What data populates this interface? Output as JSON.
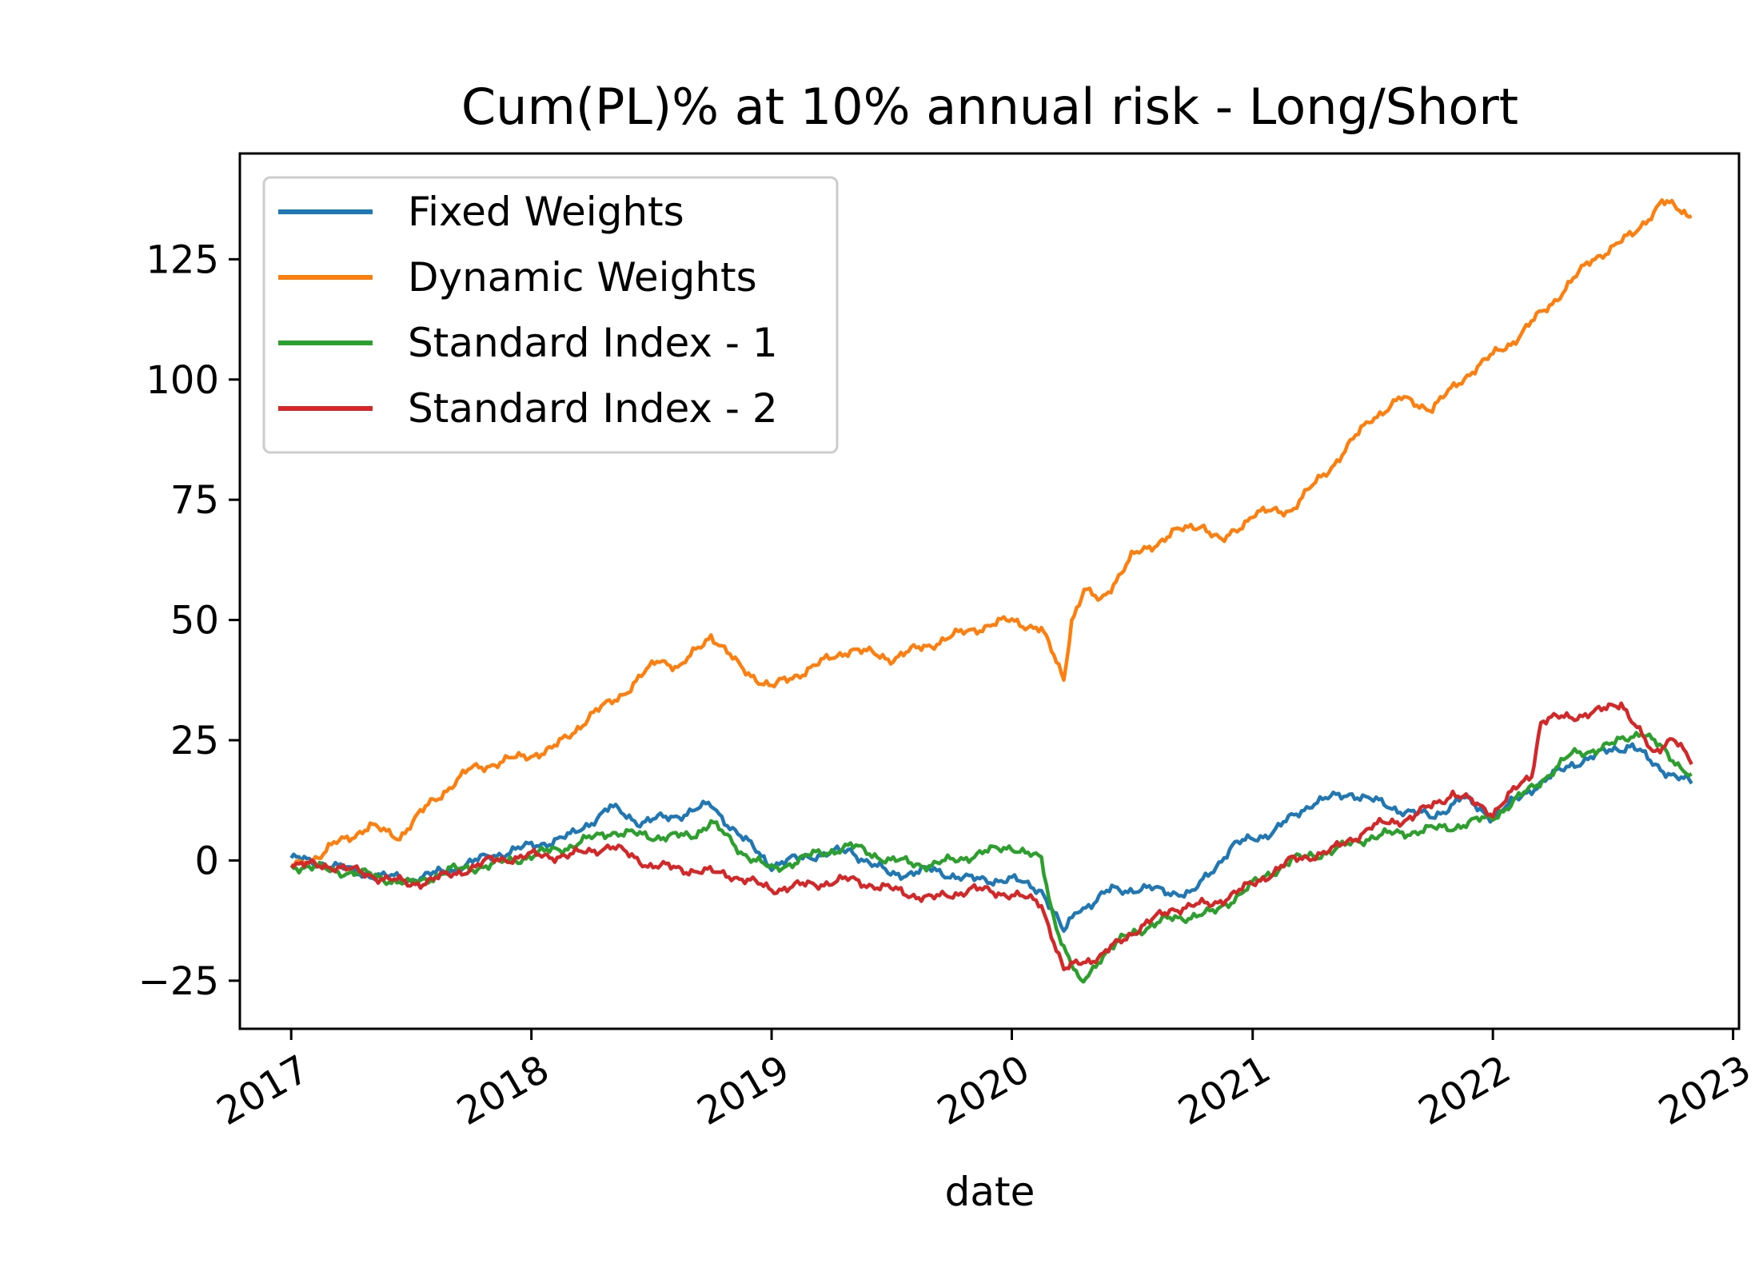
{
  "chart_data": {
    "type": "line",
    "title": "Cum(PL)% at 10% annual risk - Long/Short",
    "xlabel": "date",
    "ylabel": "",
    "x_ticks": [
      "2017",
      "2018",
      "2019",
      "2020",
      "2021",
      "2022",
      "2023"
    ],
    "y_ticks": [
      -25,
      0,
      25,
      50,
      75,
      100,
      125
    ],
    "xlim": [
      "2016-10-15",
      "2023-01-10"
    ],
    "ylim": [
      -35,
      147
    ],
    "grid": false,
    "legend_position": "top-left",
    "series": [
      {
        "name": "Fixed Weights",
        "color": "#1f77b4",
        "points": [
          [
            "2017-01-01",
            0.5
          ],
          [
            "2017-03-01",
            -1
          ],
          [
            "2017-05-01",
            -3
          ],
          [
            "2017-07-01",
            -4
          ],
          [
            "2017-09-01",
            -2
          ],
          [
            "2017-11-01",
            1
          ],
          [
            "2018-01-01",
            3
          ],
          [
            "2018-03-01",
            5
          ],
          [
            "2018-05-01",
            11
          ],
          [
            "2018-06-15",
            8
          ],
          [
            "2018-08-01",
            9
          ],
          [
            "2018-10-01",
            11.5
          ],
          [
            "2018-11-15",
            5
          ],
          [
            "2019-01-01",
            -1
          ],
          [
            "2019-03-01",
            1
          ],
          [
            "2019-05-01",
            2
          ],
          [
            "2019-07-01",
            -3
          ],
          [
            "2019-09-01",
            -2
          ],
          [
            "2019-11-01",
            -4
          ],
          [
            "2020-01-01",
            -4
          ],
          [
            "2020-02-15",
            -6
          ],
          [
            "2020-03-01",
            -10
          ],
          [
            "2020-03-20",
            -15
          ],
          [
            "2020-04-10",
            -10
          ],
          [
            "2020-05-01",
            -9
          ],
          [
            "2020-06-01",
            -6
          ],
          [
            "2020-08-01",
            -6
          ],
          [
            "2020-10-01",
            -7
          ],
          [
            "2020-12-01",
            3
          ],
          [
            "2021-02-01",
            6
          ],
          [
            "2021-04-01",
            12
          ],
          [
            "2021-06-01",
            14
          ],
          [
            "2021-08-01",
            11
          ],
          [
            "2021-10-01",
            9
          ],
          [
            "2021-11-15",
            13
          ],
          [
            "2022-01-01",
            9
          ],
          [
            "2022-03-01",
            15
          ],
          [
            "2022-05-01",
            20
          ],
          [
            "2022-07-01",
            23
          ],
          [
            "2022-08-01",
            24
          ],
          [
            "2022-09-01",
            20
          ],
          [
            "2022-10-30",
            16
          ]
        ]
      },
      {
        "name": "Dynamic Weights",
        "color": "#ff7f0e",
        "points": [
          [
            "2017-01-01",
            -1
          ],
          [
            "2017-02-15",
            1
          ],
          [
            "2017-03-15",
            4
          ],
          [
            "2017-05-01",
            7
          ],
          [
            "2017-06-15",
            5
          ],
          [
            "2017-08-01",
            12
          ],
          [
            "2017-10-01",
            19
          ],
          [
            "2017-12-01",
            21
          ],
          [
            "2018-02-01",
            23
          ],
          [
            "2018-04-01",
            30
          ],
          [
            "2018-06-01",
            36
          ],
          [
            "2018-07-15",
            42
          ],
          [
            "2018-08-15",
            40
          ],
          [
            "2018-10-01",
            47
          ],
          [
            "2018-11-15",
            40
          ],
          [
            "2019-01-01",
            36
          ],
          [
            "2019-03-01",
            40
          ],
          [
            "2019-05-01",
            44
          ],
          [
            "2019-07-01",
            42
          ],
          [
            "2019-09-01",
            45
          ],
          [
            "2019-11-01",
            48
          ],
          [
            "2020-01-01",
            50
          ],
          [
            "2020-02-15",
            48
          ],
          [
            "2020-03-20",
            38
          ],
          [
            "2020-04-01",
            50
          ],
          [
            "2020-04-20",
            56
          ],
          [
            "2020-05-15",
            54
          ],
          [
            "2020-07-01",
            63
          ],
          [
            "2020-09-01",
            68
          ],
          [
            "2020-10-15",
            70
          ],
          [
            "2020-11-15",
            66
          ],
          [
            "2021-01-01",
            72
          ],
          [
            "2021-03-01",
            73
          ],
          [
            "2021-05-01",
            82
          ],
          [
            "2021-07-01",
            92
          ],
          [
            "2021-08-15",
            96
          ],
          [
            "2021-10-01",
            94
          ],
          [
            "2021-12-01",
            102
          ],
          [
            "2022-02-01",
            108
          ],
          [
            "2022-04-01",
            116
          ],
          [
            "2022-06-01",
            125
          ],
          [
            "2022-08-01",
            130
          ],
          [
            "2022-09-15",
            137
          ],
          [
            "2022-10-15",
            135
          ],
          [
            "2022-10-30",
            134
          ]
        ]
      },
      {
        "name": "Standard Index - 1",
        "color": "#2ca02c",
        "points": [
          [
            "2017-01-01",
            -1
          ],
          [
            "2017-03-01",
            -2
          ],
          [
            "2017-05-01",
            -3
          ],
          [
            "2017-07-01",
            -5
          ],
          [
            "2017-09-01",
            -2
          ],
          [
            "2017-11-01",
            -1
          ],
          [
            "2018-01-01",
            1
          ],
          [
            "2018-03-01",
            3
          ],
          [
            "2018-05-01",
            6
          ],
          [
            "2018-07-01",
            5
          ],
          [
            "2018-09-01",
            5
          ],
          [
            "2018-10-01",
            8
          ],
          [
            "2018-11-15",
            2
          ],
          [
            "2019-01-01",
            -2
          ],
          [
            "2019-03-01",
            1
          ],
          [
            "2019-05-01",
            3
          ],
          [
            "2019-07-01",
            0
          ],
          [
            "2019-09-01",
            -1
          ],
          [
            "2019-11-01",
            1
          ],
          [
            "2020-01-01",
            3
          ],
          [
            "2020-02-15",
            0
          ],
          [
            "2020-03-01",
            -10
          ],
          [
            "2020-03-20",
            -18
          ],
          [
            "2020-04-15",
            -26
          ],
          [
            "2020-05-15",
            -20
          ],
          [
            "2020-07-01",
            -15
          ],
          [
            "2020-09-01",
            -12
          ],
          [
            "2020-11-01",
            -11
          ],
          [
            "2021-01-01",
            -5
          ],
          [
            "2021-03-01",
            0
          ],
          [
            "2021-05-01",
            2
          ],
          [
            "2021-07-01",
            5
          ],
          [
            "2021-09-01",
            6
          ],
          [
            "2021-11-01",
            7
          ],
          [
            "2022-01-01",
            9
          ],
          [
            "2022-03-01",
            15
          ],
          [
            "2022-05-01",
            22
          ],
          [
            "2022-07-01",
            24
          ],
          [
            "2022-08-15",
            27
          ],
          [
            "2022-10-01",
            21
          ],
          [
            "2022-10-30",
            18
          ]
        ]
      },
      {
        "name": "Standard Index - 2",
        "color": "#d62728",
        "points": [
          [
            "2017-01-01",
            -1
          ],
          [
            "2017-03-01",
            -1
          ],
          [
            "2017-05-01",
            -3
          ],
          [
            "2017-07-01",
            -5
          ],
          [
            "2017-09-01",
            -3
          ],
          [
            "2017-11-01",
            0
          ],
          [
            "2018-01-01",
            1
          ],
          [
            "2018-03-01",
            1
          ],
          [
            "2018-05-01",
            3
          ],
          [
            "2018-07-01",
            -1
          ],
          [
            "2018-09-01",
            -2
          ],
          [
            "2018-11-01",
            -3
          ],
          [
            "2019-01-01",
            -6
          ],
          [
            "2019-03-01",
            -5
          ],
          [
            "2019-05-01",
            -4
          ],
          [
            "2019-07-01",
            -6
          ],
          [
            "2019-09-01",
            -8
          ],
          [
            "2019-11-01",
            -6
          ],
          [
            "2020-01-01",
            -7
          ],
          [
            "2020-02-15",
            -9
          ],
          [
            "2020-03-01",
            -15
          ],
          [
            "2020-03-20",
            -23
          ],
          [
            "2020-04-15",
            -21
          ],
          [
            "2020-05-15",
            -20
          ],
          [
            "2020-07-01",
            -15
          ],
          [
            "2020-09-01",
            -10
          ],
          [
            "2020-11-01",
            -9
          ],
          [
            "2021-01-01",
            -5
          ],
          [
            "2021-03-01",
            0
          ],
          [
            "2021-05-01",
            2
          ],
          [
            "2021-07-01",
            7
          ],
          [
            "2021-09-01",
            9
          ],
          [
            "2021-11-01",
            14
          ],
          [
            "2022-01-01",
            10
          ],
          [
            "2022-03-01",
            18
          ],
          [
            "2022-03-15",
            29
          ],
          [
            "2022-05-01",
            30
          ],
          [
            "2022-06-15",
            31
          ],
          [
            "2022-07-15",
            33
          ],
          [
            "2022-09-01",
            22
          ],
          [
            "2022-10-01",
            26
          ],
          [
            "2022-10-30",
            20
          ]
        ]
      }
    ]
  }
}
